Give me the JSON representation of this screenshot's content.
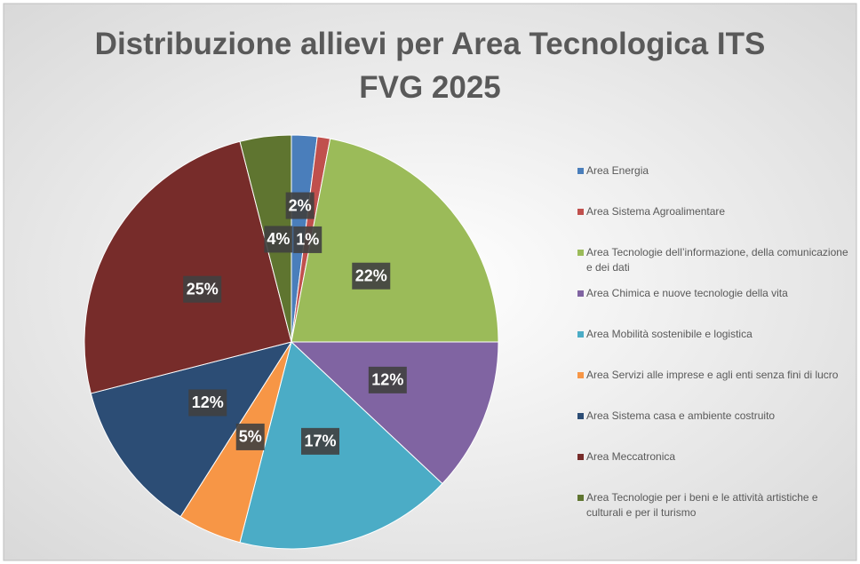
{
  "chart_data": {
    "type": "pie",
    "title": "Distribuzione allievi per Area Tecnologica ITS FVG 2025",
    "categories": [
      "Area Energia",
      "Area Sistema Agroalimentare",
      "Area Tecnologie dell’informazione, della comunicazione e dei dati",
      "Area Chimica e nuove tecnologie della vita",
      "Area Mobilità sostenibile e logistica",
      "Area Servizi alle imprese e agli enti senza fini di lucro",
      "Area Sistema casa e ambiente costruito",
      "Area Meccatronica",
      "Area Tecnologie per i beni e le attività artistiche e culturali e per il turismo"
    ],
    "values": [
      2,
      1,
      22,
      12,
      17,
      5,
      12,
      25,
      4
    ],
    "value_labels": [
      "2%",
      "1%",
      "22%",
      "12%",
      "17%",
      "5%",
      "12%",
      "25%",
      "4%"
    ],
    "colors": [
      "#4a7ebb",
      "#c0504d",
      "#9bbb59",
      "#8064a2",
      "#4bacc6",
      "#f79646",
      "#2c4d75",
      "#772c2a",
      "#5f7530"
    ],
    "legend": "right"
  }
}
